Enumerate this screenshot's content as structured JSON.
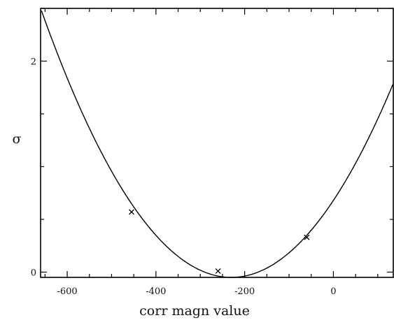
{
  "chart_data": {
    "type": "scatter",
    "xlabel": "corr magn value",
    "ylabel": "σ",
    "xlim": [
      -660,
      135
    ],
    "ylim": [
      -0.05,
      2.5
    ],
    "x_major_ticks": [
      -600,
      -400,
      -200,
      0
    ],
    "x_major_tick_labels": [
      "-600",
      "-400",
      "-200",
      "0"
    ],
    "y_major_ticks": [
      0,
      2
    ],
    "y_major_tick_labels": [
      "0",
      "2"
    ],
    "grid": false,
    "legend": "none",
    "series": [
      {
        "marker": "x",
        "points": [
          {
            "x": -455,
            "y": 0.57
          },
          {
            "x": -260,
            "y": 0.01
          },
          {
            "x": -60,
            "y": 0.33
          }
        ]
      }
    ],
    "fit_curve": {
      "type": "parabola",
      "vertex_x": -230,
      "vertex_y": -0.05,
      "a": 1.38e-05
    }
  }
}
